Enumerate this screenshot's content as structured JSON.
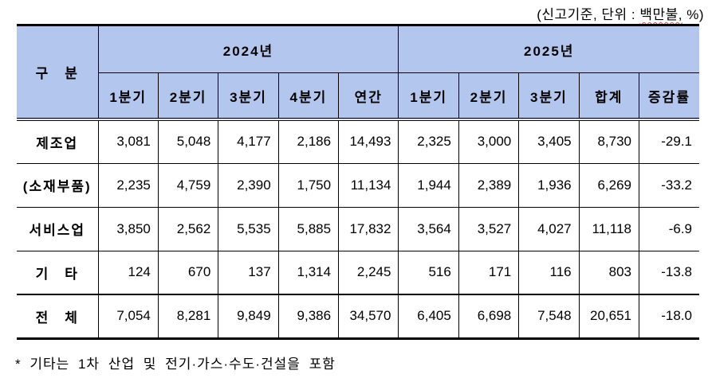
{
  "caption": {
    "prefix": "(신고기준, 단위 : ",
    "highlight": "백만불,",
    "suffix": " %)"
  },
  "table": {
    "corner_label": "구　분",
    "groups": [
      {
        "label": "2024년",
        "span": 5
      },
      {
        "label": "2025년",
        "span": 5
      }
    ],
    "subheaders": [
      "1분기",
      "2분기",
      "3분기",
      "4분기",
      "연간",
      "1분기",
      "2분기",
      "3분기",
      "합계",
      "증감률"
    ],
    "rows": [
      {
        "label": "제조업",
        "values": [
          "3,081",
          "5,048",
          "4,177",
          "2,186",
          "14,493",
          "2,325",
          "3,000",
          "3,405",
          "8,730",
          "-29.1"
        ]
      },
      {
        "label": "(소재부품)",
        "values": [
          "2,235",
          "4,759",
          "2,390",
          "1,750",
          "11,134",
          "1,944",
          "2,389",
          "1,936",
          "6,269",
          "-33.2"
        ]
      },
      {
        "label": "서비스업",
        "values": [
          "3,850",
          "2,562",
          "5,535",
          "5,885",
          "17,832",
          "3,564",
          "3,527",
          "4,027",
          "11,118",
          "-6.9"
        ]
      },
      {
        "label": "기　타",
        "values": [
          "124",
          "670",
          "137",
          "1,314",
          "2,245",
          "516",
          "171",
          "116",
          "803",
          "-13.8"
        ]
      },
      {
        "label": "전　체",
        "values": [
          "7,054",
          "8,281",
          "9,849",
          "9,386",
          "34,570",
          "6,405",
          "6,698",
          "7,548",
          "20,651",
          "-18.0"
        ]
      }
    ]
  },
  "footnote": "* 기타는 1차 산업 및 전기·가스·수도·건설을 포함",
  "colors": {
    "header_bg": "#b3c7ee",
    "border": "#000000",
    "spellcheck_underline": "#cc5040",
    "text": "#000000"
  }
}
